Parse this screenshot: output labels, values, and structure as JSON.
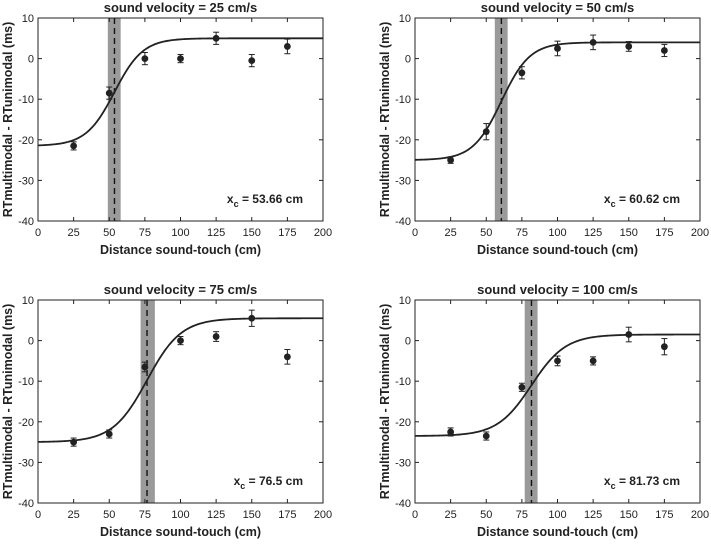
{
  "figure": {
    "background": "#ffffff",
    "axis_color": "#222222",
    "band_color": "#9a9a9a",
    "curve_color": "#222222",
    "point_color": "#222222"
  },
  "chart_data": [
    {
      "type": "scatter",
      "title": "sound velocity = 25 cm/s",
      "xlabel": "Distance sound-touch (cm)",
      "ylabel": "RTmultimodal - RTunimodal (ms)",
      "xlim": [
        0,
        200
      ],
      "ylim": [
        -40,
        10
      ],
      "xticks": [
        0,
        25,
        50,
        75,
        100,
        125,
        150,
        175,
        200
      ],
      "yticks": [
        -40,
        -30,
        -20,
        -10,
        0,
        10
      ],
      "x": [
        25,
        50,
        75,
        100,
        125,
        150,
        175
      ],
      "y": [
        -21.5,
        -8.5,
        0,
        0,
        5,
        -0.5,
        3
      ],
      "err": [
        1,
        1.5,
        1.5,
        1,
        1.5,
        1.5,
        1.8
      ],
      "fit": {
        "low": -21.5,
        "high": 5,
        "center": 53.66,
        "slope": 10
      },
      "xc": 53.66,
      "xc_band": [
        49,
        58
      ],
      "annotation": {
        "label": "x",
        "subscript": "c",
        "text": " = 53.66 cm"
      }
    },
    {
      "type": "scatter",
      "title": "sound velocity = 50 cm/s",
      "xlabel": "Distance sound-touch (cm)",
      "ylabel": "RTmultimodal - RTunimodal (ms)",
      "xlim": [
        0,
        200
      ],
      "ylim": [
        -40,
        10
      ],
      "xticks": [
        0,
        25,
        50,
        75,
        100,
        125,
        150,
        175,
        200
      ],
      "yticks": [
        -40,
        -30,
        -20,
        -10,
        0,
        10
      ],
      "x": [
        25,
        50,
        75,
        100,
        125,
        150,
        175
      ],
      "y": [
        -25,
        -18,
        -3.5,
        2.5,
        4,
        3,
        2
      ],
      "err": [
        0.8,
        2,
        1.5,
        1.8,
        1.8,
        1.2,
        1.5
      ],
      "fit": {
        "low": -25,
        "high": 4,
        "center": 60.62,
        "slope": 10
      },
      "xc": 60.62,
      "xc_band": [
        56,
        65
      ],
      "annotation": {
        "label": "x",
        "subscript": "c",
        "text": " = 60.62 cm"
      }
    },
    {
      "type": "scatter",
      "title": "sound velocity = 75 cm/s",
      "xlabel": "Distance sound-touch (cm)",
      "ylabel": "RTmultimodal - RTunimodal (ms)",
      "xlim": [
        0,
        200
      ],
      "ylim": [
        -40,
        10
      ],
      "xticks": [
        0,
        25,
        50,
        75,
        100,
        125,
        150,
        175,
        200
      ],
      "yticks": [
        -40,
        -30,
        -20,
        -10,
        0,
        10
      ],
      "x": [
        25,
        50,
        75,
        100,
        125,
        150,
        175
      ],
      "y": [
        -25,
        -23,
        -6.5,
        0,
        1,
        5.5,
        -4
      ],
      "err": [
        1,
        1,
        1.2,
        1,
        1.2,
        2,
        1.8
      ],
      "fit": {
        "low": -25,
        "high": 5.5,
        "center": 76.5,
        "slope": 12
      },
      "xc": 76.5,
      "xc_band": [
        72,
        82
      ],
      "annotation": {
        "label": "x",
        "subscript": "c",
        "text": " = 76.5 cm"
      }
    },
    {
      "type": "scatter",
      "title": "sound velocity = 100 cm/s",
      "xlabel": "Distance sound-touch (cm)",
      "ylabel": "RTmultimodal - RTunimodal (ms)",
      "xlim": [
        0,
        200
      ],
      "ylim": [
        -40,
        10
      ],
      "xticks": [
        0,
        25,
        50,
        75,
        100,
        125,
        150,
        175,
        200
      ],
      "yticks": [
        -40,
        -30,
        -20,
        -10,
        0,
        10
      ],
      "x": [
        25,
        50,
        75,
        100,
        125,
        150,
        175
      ],
      "y": [
        -22.5,
        -23.5,
        -11.5,
        -5,
        -5,
        1.5,
        -1.5
      ],
      "err": [
        1,
        1,
        1,
        1.2,
        1,
        1.8,
        2
      ],
      "fit": {
        "low": -23.5,
        "high": 1.5,
        "center": 81.73,
        "slope": 12
      },
      "xc": 81.73,
      "xc_band": [
        77,
        86
      ],
      "annotation": {
        "label": "x",
        "subscript": "c",
        "text": " = 81.73 cm"
      }
    }
  ]
}
